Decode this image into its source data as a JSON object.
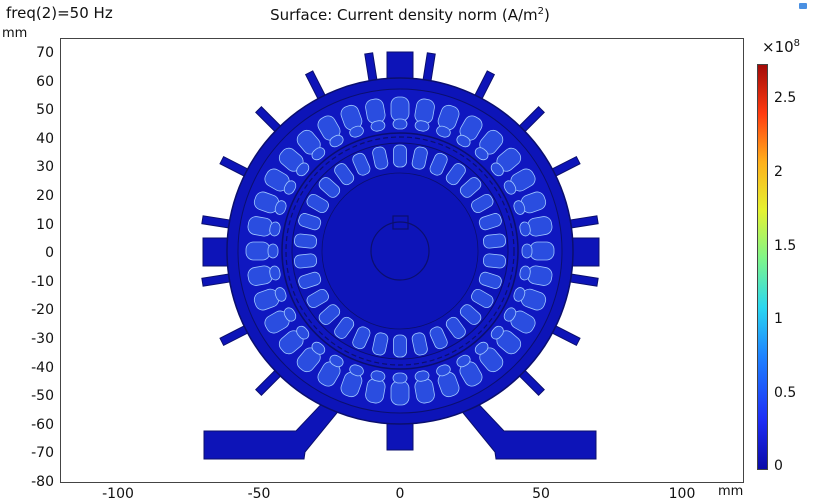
{
  "header": {
    "param_label": "freq(2)=50 Hz",
    "title": "Surface: Current density norm (A/m",
    "title_sup": "2",
    "title_end": ")"
  },
  "axes": {
    "y_unit": "mm",
    "x_unit": "mm",
    "y_ticks": [
      "70",
      "60",
      "50",
      "40",
      "30",
      "20",
      "10",
      "0",
      "-10",
      "-20",
      "-30",
      "-40",
      "-50",
      "-60",
      "-70",
      "-80"
    ],
    "x_ticks": [
      "-100",
      "-50",
      "0",
      "50",
      "100"
    ]
  },
  "colorbar": {
    "exponent_label": "×10",
    "exponent_sup": "8",
    "ticks": [
      "2.5",
      "2",
      "1.5",
      "1",
      "0.5",
      "0"
    ],
    "colors": {
      "low": "#0a0aa8",
      "high": "#a30a08"
    }
  },
  "plot": {
    "field_color": "#0d14b8",
    "edge_color": "#0b0f6e",
    "coil_color": "#2a4de0",
    "highlight_color": "#9fc6ff"
  }
}
